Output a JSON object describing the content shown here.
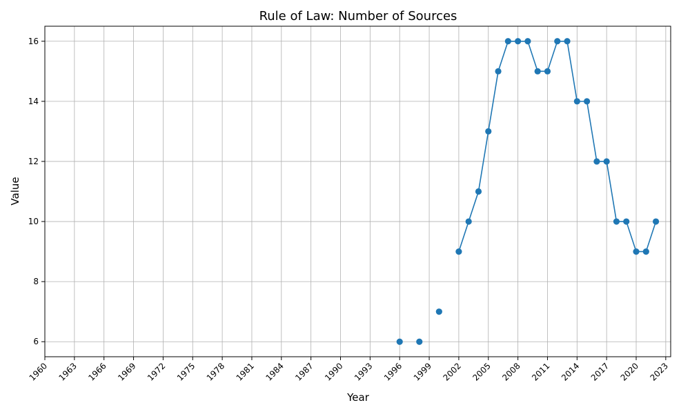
{
  "chart_data": {
    "type": "line",
    "title": "Rule of Law: Number of Sources",
    "xlabel": "Year",
    "ylabel": "Value",
    "xlim": [
      1960,
      2023.5
    ],
    "ylim": [
      5.5,
      16.5
    ],
    "xticks": [
      1960,
      1963,
      1966,
      1969,
      1972,
      1975,
      1978,
      1981,
      1984,
      1987,
      1990,
      1993,
      1996,
      1999,
      2002,
      2005,
      2008,
      2011,
      2014,
      2017,
      2020,
      2023
    ],
    "yticks": [
      6,
      8,
      10,
      12,
      14,
      16
    ],
    "grid": true,
    "series": [
      {
        "color": "#1f77b4",
        "x": [
          1996,
          1998,
          2000,
          2002,
          2003,
          2004,
          2005,
          2006,
          2007,
          2008,
          2009,
          2010,
          2011,
          2012,
          2013,
          2014,
          2015,
          2016,
          2017,
          2018,
          2019,
          2020,
          2021,
          2022
        ],
        "y": [
          6,
          6,
          7,
          9,
          10,
          11,
          13,
          15,
          16,
          16,
          16,
          15,
          15,
          16,
          16,
          14,
          14,
          12,
          12,
          10,
          10,
          9,
          9,
          10
        ],
        "connected_from_index": 3
      }
    ]
  }
}
